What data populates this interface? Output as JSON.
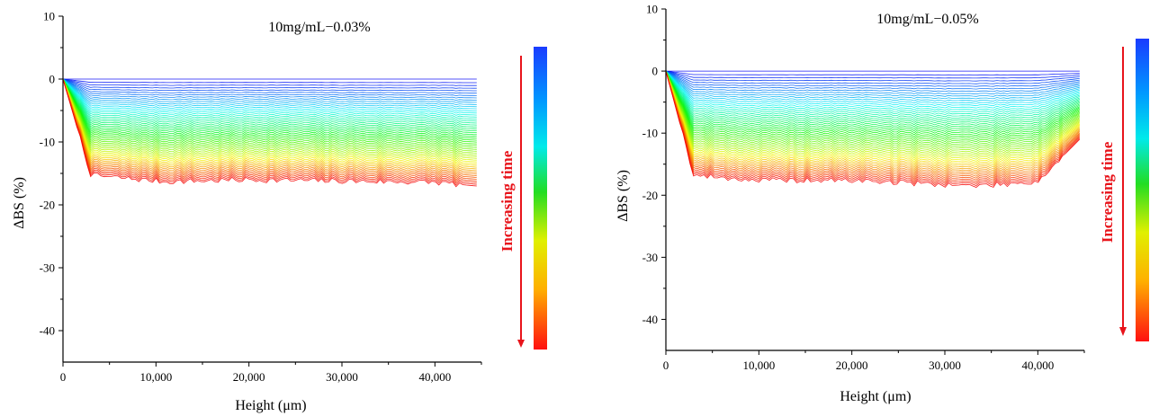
{
  "chart_data": [
    {
      "type": "line",
      "title": "10mg/mL−0.03%",
      "xlabel": "Height (μm)",
      "ylabel": "ΔBS (%)",
      "xlim": [
        0,
        45000
      ],
      "ylim": [
        -45,
        10
      ],
      "xticks": [
        0,
        10000,
        20000,
        30000,
        40000
      ],
      "xtick_labels": [
        "0",
        "10,000",
        "20,000",
        "30,000",
        "40,000"
      ],
      "yticks": [
        10,
        0,
        -10,
        -20,
        -30,
        -40
      ],
      "ytick_labels": [
        "10",
        "0",
        "-10",
        "-20",
        "-30",
        "-40"
      ],
      "grid": false,
      "legend": "colorbar right (blue = early, red = late)",
      "colorbar_label": "Increasing time",
      "series_count": 55,
      "series_description": "Backscattering profiles over time; each profile starts at 0 at height 0, drops steeply by ~3,000 μm to a plateau, and rises again near the top edge (~44,500 μm).",
      "plateau_first": 0,
      "plateau_last": -15.5,
      "plateau_samples": [
        {
          "x": 0,
          "y": 0
        },
        {
          "x": 3000,
          "y": -15.3
        },
        {
          "x": 11000,
          "y": -16.3
        },
        {
          "x": 20000,
          "y": -16.0
        },
        {
          "x": 30000,
          "y": -16.2
        },
        {
          "x": 40000,
          "y": -16.4
        },
        {
          "x": 44500,
          "y": -17
        }
      ],
      "colors": [
        "#2222ff",
        "#00e8e8",
        "#10d010",
        "#f0f000",
        "#ff8800",
        "#ee1111"
      ]
    },
    {
      "type": "line",
      "title": "10mg/mL−0.05%",
      "xlabel": "Height (μm)",
      "ylabel": "ΔBS (%)",
      "xlim": [
        0,
        45000
      ],
      "ylim": [
        -45,
        10
      ],
      "xticks": [
        0,
        10000,
        20000,
        30000,
        40000
      ],
      "xtick_labels": [
        "0",
        "10,000",
        "20,000",
        "30,000",
        "40,000"
      ],
      "yticks": [
        10,
        0,
        -10,
        -20,
        -30,
        -40
      ],
      "ytick_labels": [
        "10",
        "0",
        "-10",
        "-20",
        "-30",
        "-40"
      ],
      "grid": false,
      "legend": "colorbar right (blue = early, red = late)",
      "colorbar_label": "Increasing time",
      "series_count": 55,
      "series_description": "Backscattering profiles over time; each profile starts at 0 at height 0, drops steeply by ~3,000 μm to a plateau, and rises again near the top edge (~44,500 μm).",
      "plateau_first": 0,
      "plateau_last": -17.5,
      "plateau_samples": [
        {
          "x": 0,
          "y": 0
        },
        {
          "x": 3000,
          "y": -16.8
        },
        {
          "x": 10000,
          "y": -17.6
        },
        {
          "x": 20000,
          "y": -17.6
        },
        {
          "x": 33500,
          "y": -18.5
        },
        {
          "x": 40000,
          "y": -17.8
        },
        {
          "x": 44500,
          "y": -11
        }
      ],
      "colors": [
        "#2222ff",
        "#00e8e8",
        "#10d010",
        "#f0f000",
        "#ff8800",
        "#ee1111"
      ]
    }
  ]
}
